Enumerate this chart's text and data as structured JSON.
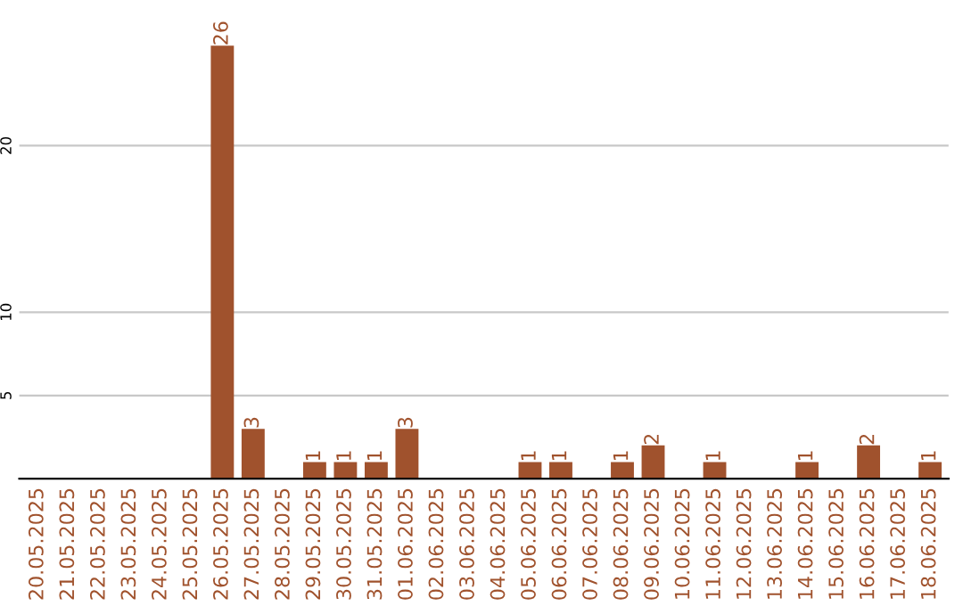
{
  "chart_data": {
    "type": "bar",
    "categories": [
      "20.05.2025",
      "21.05.2025",
      "22.05.2025",
      "23.05.2025",
      "24.05.2025",
      "25.05.2025",
      "26.05.2025",
      "27.05.2025",
      "28.05.2025",
      "29.05.2025",
      "30.05.2025",
      "31.05.2025",
      "01.06.2025",
      "02.06.2025",
      "03.06.2025",
      "04.06.2025",
      "05.06.2025",
      "06.06.2025",
      "07.06.2025",
      "08.06.2025",
      "09.06.2025",
      "10.06.2025",
      "11.06.2025",
      "12.06.2025",
      "13.06.2025",
      "14.06.2025",
      "15.06.2025",
      "16.06.2025",
      "17.06.2025",
      "18.06.2025"
    ],
    "values": [
      0,
      0,
      0,
      0,
      0,
      0,
      26,
      3,
      0,
      1,
      1,
      1,
      3,
      0,
      0,
      0,
      1,
      1,
      0,
      1,
      2,
      0,
      1,
      0,
      0,
      1,
      0,
      2,
      0,
      1
    ],
    "value_labels": [
      null,
      null,
      null,
      null,
      null,
      null,
      "26",
      "3",
      null,
      "1",
      "1",
      "1",
      "3",
      null,
      null,
      null,
      "1",
      "1",
      null,
      "1",
      "2",
      null,
      "1",
      null,
      null,
      "1",
      null,
      "2",
      null,
      "1"
    ],
    "color": "#a0522d",
    "ylim": [
      0,
      26.2
    ],
    "yticks": [
      5,
      10,
      20
    ],
    "grid": "y"
  }
}
